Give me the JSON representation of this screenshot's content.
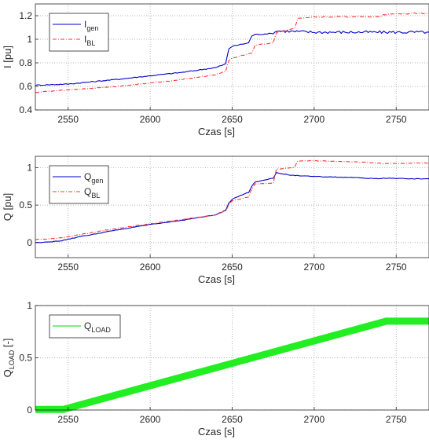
{
  "chart_data": [
    {
      "type": "line",
      "xlabel": "Czas [s]",
      "ylabel": "I [pu]",
      "xlim": [
        2530,
        2770
      ],
      "ylim": [
        0.4,
        1.3
      ],
      "xticks": [
        2550,
        2600,
        2650,
        2700,
        2750
      ],
      "yticks": [
        0.4,
        0.6,
        0.8,
        1,
        1.2
      ],
      "ytick_labels": [
        "0.4",
        "0.6",
        "0.8",
        "1",
        "1.2"
      ],
      "grid": true,
      "legend": "top-left",
      "series": [
        {
          "name": "I",
          "sub": "gen",
          "color": "#0000cc",
          "style": "solid",
          "x": [
            2530,
            2550,
            2580,
            2600,
            2620,
            2640,
            2646,
            2648,
            2650,
            2660,
            2662,
            2664,
            2675,
            2677,
            2680,
            2700,
            2720,
            2740,
            2760,
            2770
          ],
          "y": [
            0.61,
            0.62,
            0.66,
            0.69,
            0.72,
            0.76,
            0.79,
            0.92,
            0.94,
            0.97,
            1.03,
            1.04,
            1.05,
            1.07,
            1.07,
            1.06,
            1.06,
            1.06,
            1.06,
            1.06
          ]
        },
        {
          "name": "I",
          "sub": "BL",
          "color": "#ff3333",
          "style": "dashdot",
          "x": [
            2530,
            2550,
            2580,
            2600,
            2620,
            2640,
            2646,
            2648,
            2650,
            2662,
            2664,
            2675,
            2677,
            2688,
            2690,
            2700,
            2720,
            2740,
            2742,
            2760,
            2770
          ],
          "y": [
            0.55,
            0.57,
            0.6,
            0.63,
            0.66,
            0.7,
            0.73,
            0.82,
            0.84,
            0.88,
            0.95,
            0.97,
            1.06,
            1.09,
            1.18,
            1.19,
            1.19,
            1.19,
            1.21,
            1.22,
            1.22
          ]
        }
      ]
    },
    {
      "type": "line",
      "xlabel": "Czas [s]",
      "ylabel": "Q [pu]",
      "xlim": [
        2530,
        2770
      ],
      "ylim": [
        -0.2,
        1.15
      ],
      "xticks": [
        2550,
        2600,
        2650,
        2700,
        2750
      ],
      "yticks": [
        0,
        0.5,
        1
      ],
      "ytick_labels": [
        "0",
        "0.5",
        "1"
      ],
      "grid": true,
      "legend": "top-left",
      "series": [
        {
          "name": "Q",
          "sub": "gen",
          "color": "#0000cc",
          "style": "solid",
          "x": [
            2530,
            2545,
            2555,
            2580,
            2600,
            2620,
            2640,
            2646,
            2648,
            2650,
            2660,
            2662,
            2664,
            2675,
            2677,
            2685,
            2700,
            2720,
            2740,
            2742,
            2760,
            2770
          ],
          "y": [
            0.0,
            0.02,
            0.07,
            0.17,
            0.24,
            0.3,
            0.37,
            0.43,
            0.53,
            0.58,
            0.67,
            0.75,
            0.81,
            0.86,
            0.93,
            0.9,
            0.88,
            0.87,
            0.85,
            0.86,
            0.85,
            0.85
          ]
        },
        {
          "name": "Q",
          "sub": "BL",
          "color": "#ff3333",
          "style": "dashdot",
          "x": [
            2530,
            2545,
            2555,
            2580,
            2600,
            2620,
            2640,
            2646,
            2648,
            2650,
            2660,
            2662,
            2664,
            2675,
            2677,
            2688,
            2690,
            2700,
            2720,
            2740,
            2742,
            2760,
            2770
          ],
          "y": [
            0.04,
            0.06,
            0.1,
            0.19,
            0.25,
            0.31,
            0.37,
            0.42,
            0.51,
            0.56,
            0.61,
            0.72,
            0.78,
            0.79,
            0.98,
            1.0,
            1.09,
            1.09,
            1.08,
            1.06,
            1.05,
            1.06,
            1.06
          ]
        }
      ]
    },
    {
      "type": "line",
      "xlabel": "Czas [s]",
      "ylabel": "Q",
      "ylabel_sub": "LOAD",
      "ylabel_tail": " [-]",
      "xlim": [
        2530,
        2770
      ],
      "ylim": [
        0,
        1
      ],
      "xticks": [
        2550,
        2600,
        2650,
        2700,
        2750
      ],
      "yticks": [
        0,
        0.5,
        1
      ],
      "ytick_labels": [
        "0",
        "0.5",
        "1"
      ],
      "grid": true,
      "legend": "top-left",
      "series": [
        {
          "name": "Q",
          "sub": "LOAD",
          "color": "#22ee22",
          "style": "solid",
          "x": [
            2530,
            2547,
            2744,
            2770
          ],
          "y": [
            0.005,
            0.005,
            0.85,
            0.85
          ]
        }
      ]
    }
  ]
}
